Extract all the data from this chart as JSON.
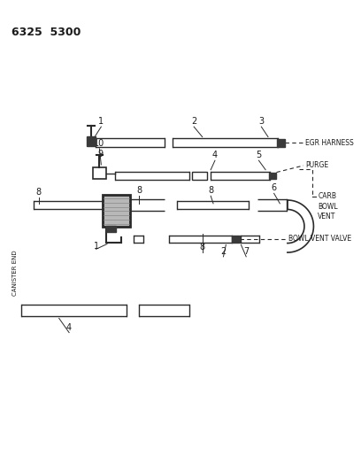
{
  "title": "6325  5300",
  "background_color": "#ffffff",
  "line_color": "#2a2a2a",
  "text_color": "#1a1a1a",
  "fig_width": 4.08,
  "fig_height": 5.33,
  "dpi": 100,
  "labels": {
    "egr_harness": "EGR HARNESS",
    "purge": "PURGE",
    "carb_bowl_vent": "CARB\nBOWL\nVENT",
    "bowl_vent_valve": "BOWL VENT VALVE",
    "canister_end": "CANISTER END"
  }
}
